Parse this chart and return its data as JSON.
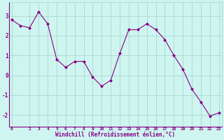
{
  "x": [
    0,
    1,
    2,
    3,
    4,
    5,
    6,
    7,
    8,
    9,
    10,
    11,
    12,
    13,
    14,
    15,
    16,
    17,
    18,
    19,
    20,
    21,
    22,
    23
  ],
  "y": [
    2.8,
    2.5,
    2.4,
    3.2,
    2.6,
    0.8,
    0.4,
    0.7,
    0.7,
    -0.1,
    -0.55,
    -0.25,
    1.1,
    2.3,
    2.3,
    2.6,
    2.3,
    1.8,
    1.0,
    0.3,
    -0.7,
    -1.35,
    -2.05,
    -1.9
  ],
  "line_color": "#880088",
  "marker": "D",
  "marker_size": 2.0,
  "bg_color": "#cef5ef",
  "grid_color": "#aad8d2",
  "xlabel": "Windchill (Refroidissement éolien,°C)",
  "xlabel_color": "#880088",
  "tick_color": "#880088",
  "yticks": [
    -2,
    -1,
    0,
    1,
    2,
    3
  ],
  "xtick_labels": [
    "0",
    "2",
    "3",
    "4",
    "5",
    "6",
    "7",
    "8",
    "9",
    "10",
    "11",
    "12",
    "13",
    "14",
    "15",
    "16",
    "17",
    "18",
    "19",
    "20",
    "21",
    "22",
    "23"
  ],
  "xtick_vals": [
    0,
    2,
    3,
    4,
    5,
    6,
    7,
    8,
    9,
    10,
    11,
    12,
    13,
    14,
    15,
    16,
    17,
    18,
    19,
    20,
    21,
    22,
    23
  ],
  "ylim": [
    -2.6,
    3.7
  ],
  "xlim": [
    -0.3,
    23.3
  ]
}
